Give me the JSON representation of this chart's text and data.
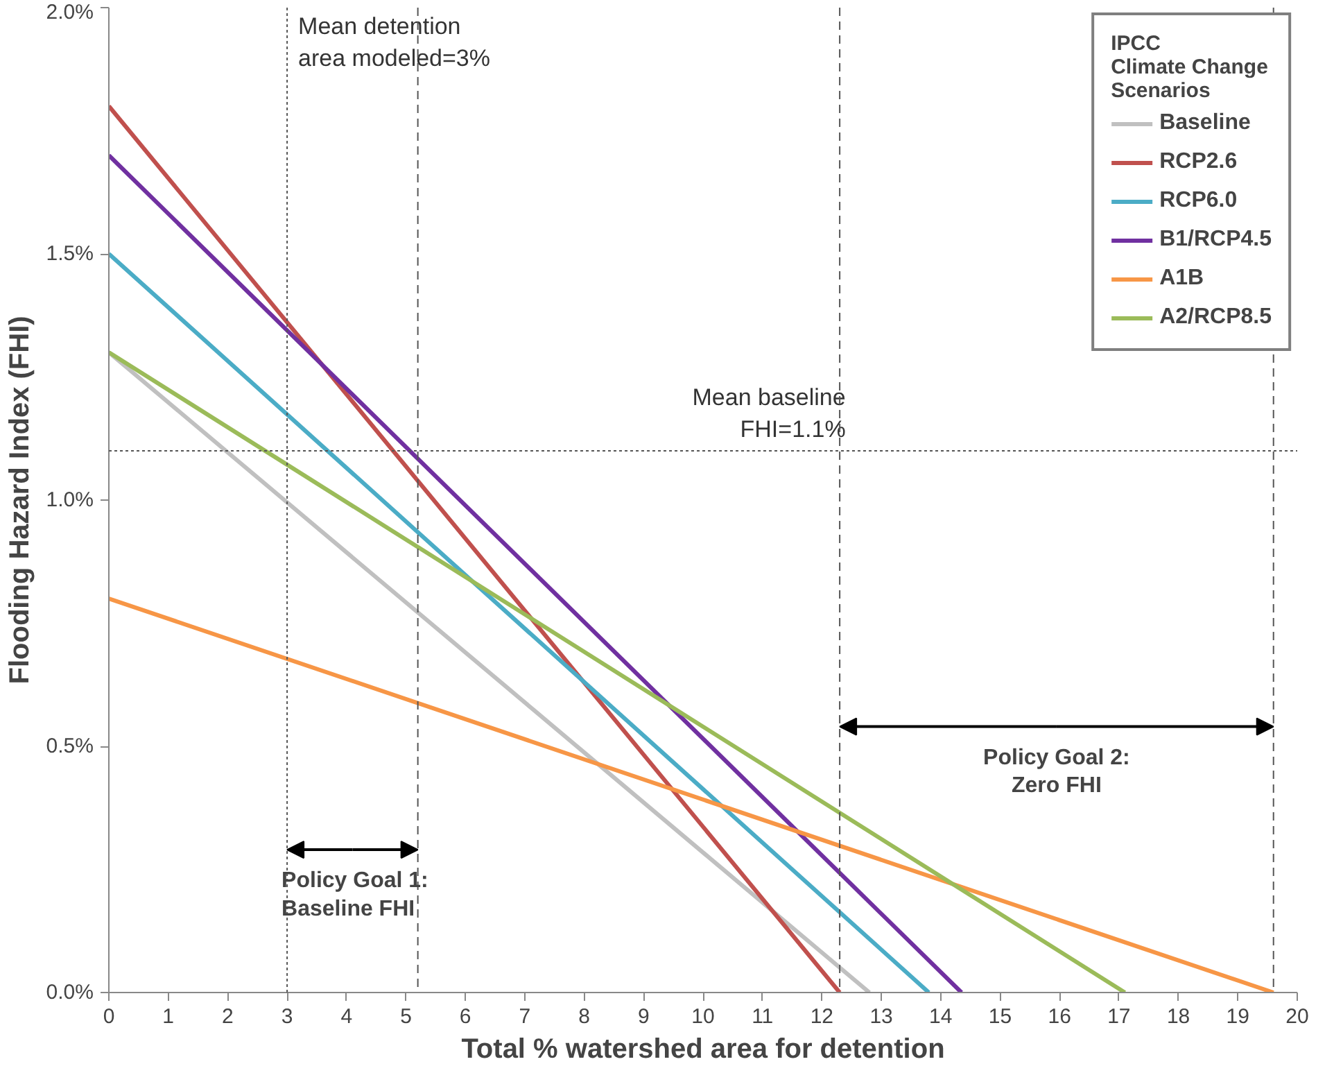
{
  "chart_data": {
    "type": "line",
    "xlabel": "Total % watershed area for detention",
    "ylabel": "Flooding Hazard Index (FHI)",
    "legend_title": "IPCC\nClimate Change\nScenarios",
    "legend": "top right",
    "grid": false,
    "marker": "none",
    "line_style": "solid",
    "xlim": [
      0,
      20
    ],
    "xticks": [
      0,
      1,
      2,
      3,
      4,
      5,
      6,
      7,
      8,
      9,
      10,
      11,
      12,
      13,
      14,
      15,
      16,
      17,
      18,
      19,
      20
    ],
    "ylim": [
      0,
      2.0
    ],
    "yticks": [
      {
        "value": 0,
        "label": "0.0%"
      },
      {
        "value": 0.5,
        "label": "0.5%"
      },
      {
        "value": 1.0,
        "label": "1.0%"
      },
      {
        "value": 1.5,
        "label": "1.5%"
      },
      {
        "value": 2.0,
        "label": "2.0%"
      }
    ],
    "series": [
      {
        "name": "Baseline",
        "color": "#c0c0c0",
        "x": [
          0,
          12.8
        ],
        "values": [
          1.3,
          0
        ]
      },
      {
        "name": "RCP2.6",
        "color": "#c0504d",
        "x": [
          0,
          12.3
        ],
        "values": [
          1.8,
          0
        ]
      },
      {
        "name": "RCP6.0",
        "color": "#4bacc6",
        "x": [
          0,
          13.8
        ],
        "values": [
          1.5,
          0
        ]
      },
      {
        "name": "B1/RCP4.5",
        "color": "#7030a0",
        "x": [
          0,
          14.35
        ],
        "values": [
          1.7,
          0
        ]
      },
      {
        "name": "A1B",
        "color": "#f79646",
        "x": [
          0,
          19.6
        ],
        "values": [
          0.8,
          0
        ]
      },
      {
        "name": "A2/RCP8.5",
        "color": "#9bbb59",
        "x": [
          0,
          17.1
        ],
        "values": [
          1.3,
          0
        ]
      }
    ],
    "ref_lines": [
      {
        "axis": "x",
        "value": 3,
        "label": "Mean detention\narea modeled=3%",
        "line_style": "dotted"
      },
      {
        "axis": "y",
        "value": 1.1,
        "label": "Mean baseline\nFHI=1.1%",
        "line_style": "dotted"
      },
      {
        "axis": "x",
        "value": 5.2,
        "line_style": "dashed"
      },
      {
        "axis": "x",
        "value": 12.3,
        "line_style": "dashed"
      },
      {
        "axis": "x",
        "value": 19.6,
        "line_style": "dashed"
      }
    ],
    "annotations": [
      {
        "text": "Policy Goal 1:\nBaseline FHI",
        "x": 3,
        "y": 0.29
      },
      {
        "text": "Policy Goal 2:\nZero FHI",
        "x": 12.3,
        "y": 0.54
      }
    ]
  }
}
